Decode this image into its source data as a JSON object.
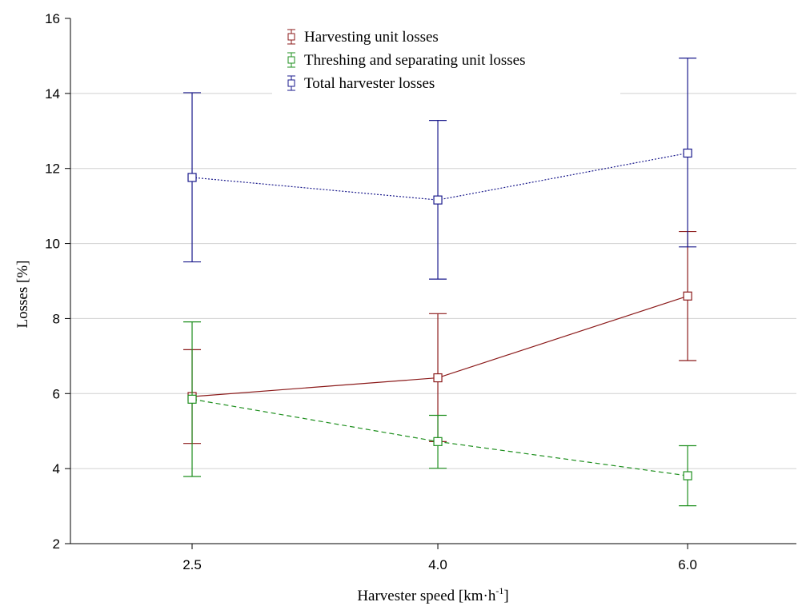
{
  "chart_data": {
    "type": "line",
    "title": "",
    "xlabel": "Harvester speed [km·h",
    "xlabel_superscript": "-1",
    "xlabel_suffix": "]",
    "ylabel": "Losses [%]",
    "categories": [
      "2.5",
      "4.0",
      "6.0"
    ],
    "ylim": [
      2,
      16
    ],
    "yticks": [
      "2",
      "4",
      "6",
      "8",
      "10",
      "12",
      "14",
      "16"
    ],
    "grid": "horizontal",
    "legend_position": "top-center",
    "error_bars": true,
    "series": [
      {
        "name": "Harvesting unit losses",
        "color": "#8b1a1a",
        "line_style": "solid",
        "values": [
          5.92,
          6.42,
          8.6
        ],
        "lower": [
          4.67,
          4.72,
          6.88
        ],
        "upper": [
          7.17,
          8.13,
          10.32
        ]
      },
      {
        "name": "Threshing and separating unit losses",
        "color": "#1e8f1e",
        "line_style": "dashed",
        "values": [
          5.85,
          4.72,
          3.81
        ],
        "lower": [
          3.79,
          4.01,
          3.01
        ],
        "upper": [
          7.91,
          5.42,
          4.61
        ]
      },
      {
        "name": "Total harvester losses",
        "color": "#1a1a8c",
        "line_style": "dotted",
        "values": [
          11.76,
          11.16,
          12.41
        ],
        "lower": [
          9.51,
          9.05,
          9.91
        ],
        "upper": [
          14.02,
          13.28,
          14.94
        ]
      }
    ]
  }
}
